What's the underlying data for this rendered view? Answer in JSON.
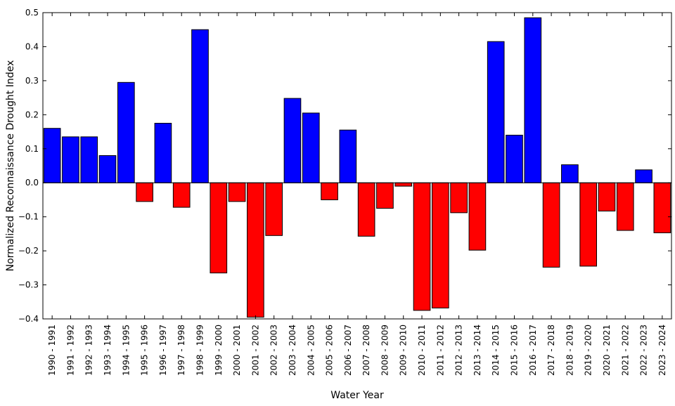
{
  "chart_data": {
    "type": "bar",
    "title": "",
    "xlabel": "Water Year",
    "ylabel": "Normalized Reconnaissance Drought Index",
    "ylim": [
      -0.4,
      0.5
    ],
    "yticks": [
      0.5,
      0.4,
      0.3,
      0.2,
      0.1,
      0.0,
      -0.1,
      -0.2,
      -0.3,
      -0.4
    ],
    "ytick_labels": [
      "0.5",
      "0.4",
      "0.3",
      "0.2",
      "0.1",
      "0.0",
      "−0.1",
      "−0.2",
      "−0.3",
      "−0.4"
    ],
    "grid": false,
    "legend": "none",
    "colors": {
      "positive": "#0000ff",
      "negative": "#ff0000",
      "edge": "#000000"
    },
    "categories": [
      "1990 - 1991",
      "1991 - 1992",
      "1992 - 1993",
      "1993 - 1994",
      "1994 - 1995",
      "1995 - 1996",
      "1996 - 1997",
      "1997 - 1998",
      "1998 - 1999",
      "1999 - 2000",
      "2000 - 2001",
      "2001 - 2002",
      "2002 - 2003",
      "2003 - 2004",
      "2004 - 2005",
      "2005 - 2006",
      "2006 - 2007",
      "2007 - 2008",
      "2008 - 2009",
      "2009 - 2010",
      "2010 - 2011",
      "2011 - 2012",
      "2012 - 2013",
      "2013 - 2014",
      "2014 - 2015",
      "2015 - 2016",
      "2016 - 2017",
      "2017 - 2018",
      "2018 - 2019",
      "2019 - 2020",
      "2020 - 2021",
      "2021 - 2022",
      "2022 - 2023",
      "2023 - 2024"
    ],
    "values": [
      0.16,
      0.135,
      0.135,
      0.08,
      0.295,
      -0.055,
      0.175,
      -0.072,
      0.45,
      -0.265,
      -0.055,
      -0.395,
      -0.155,
      0.248,
      0.205,
      -0.05,
      0.155,
      -0.157,
      -0.075,
      -0.01,
      -0.375,
      -0.368,
      -0.088,
      -0.198,
      0.415,
      0.14,
      0.485,
      -0.248,
      0.053,
      -0.245,
      -0.083,
      -0.14,
      0.038,
      -0.147
    ]
  }
}
